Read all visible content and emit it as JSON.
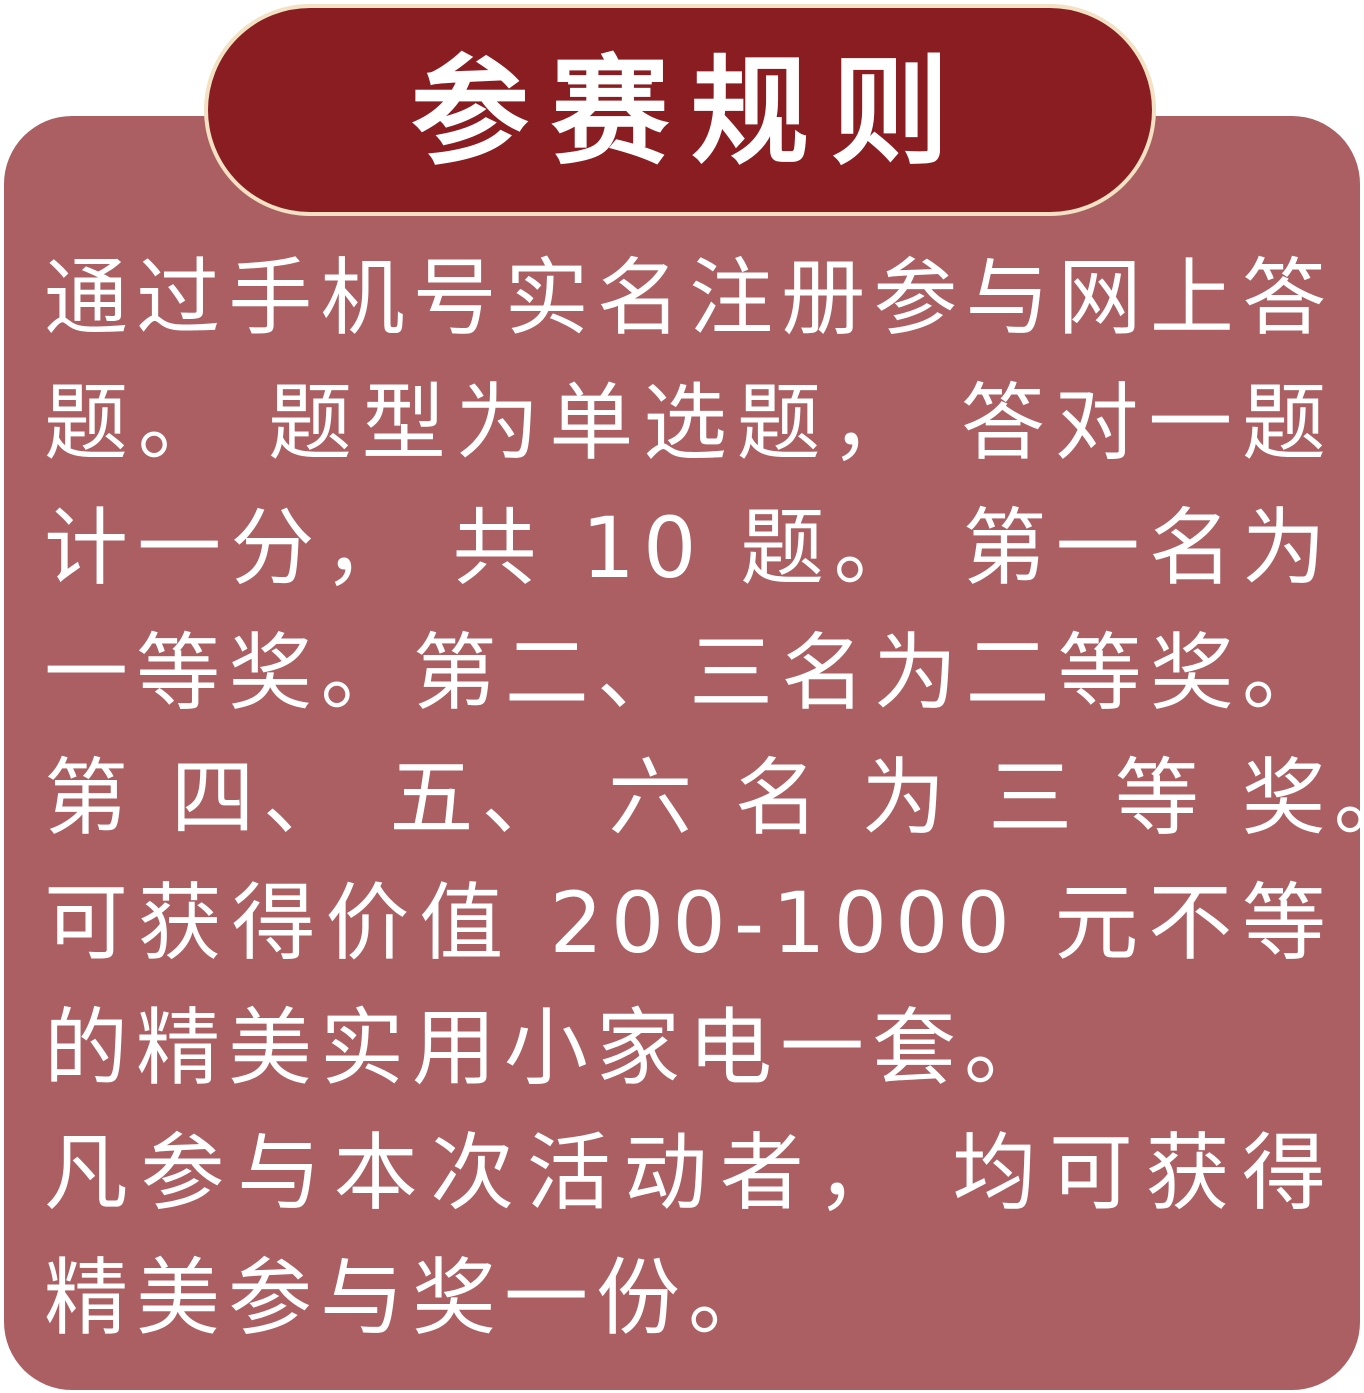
{
  "title": "参赛规则",
  "rules": {
    "lines": [
      "通过手机号实名注册参与网上答",
      "题。 题型为单选题， 答对一题",
      "计一分， 共 10 题。 第一名为",
      "一等奖。第二、三名为二等奖。",
      "第 四、 五、 六 名 为 三 等 奖。",
      "可获得价值 200-1000 元不等",
      "的精美实用小家电一套。",
      "凡参与本次活动者， 均可获得",
      "精美参与奖一份。"
    ]
  },
  "colors": {
    "card_background": "#ab5f63",
    "title_background": "#8a1d22",
    "title_border": "#f3e1c4",
    "text": "#ffffff"
  }
}
